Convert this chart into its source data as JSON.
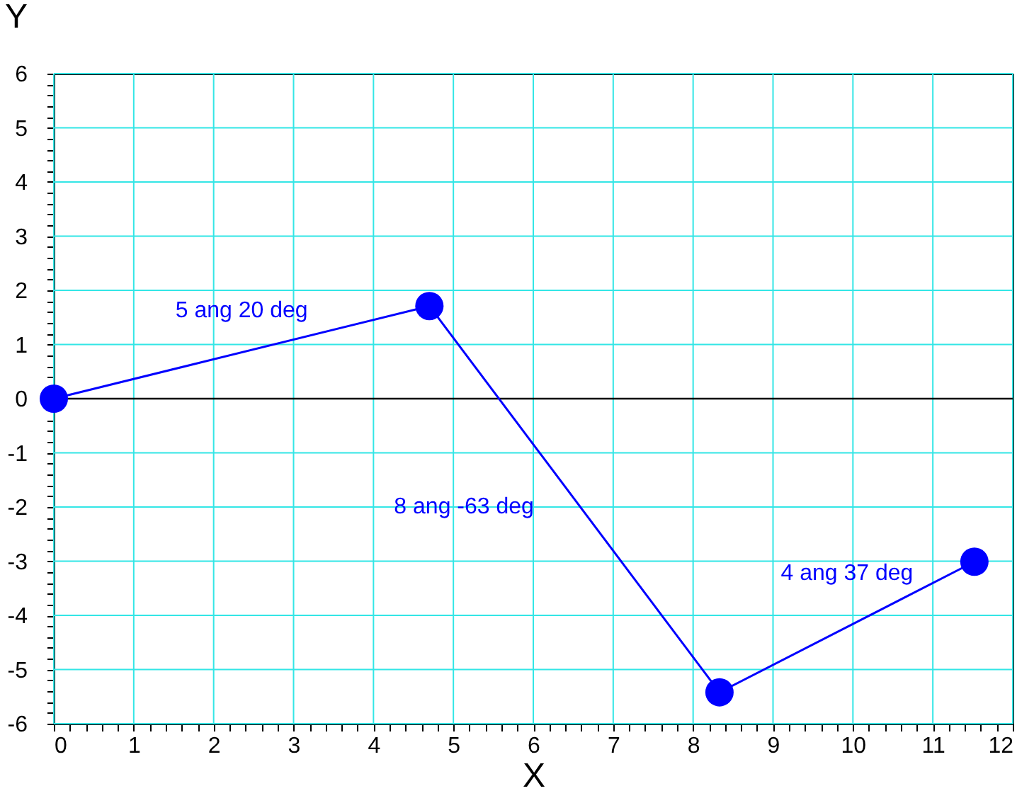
{
  "chart_data": {
    "type": "line",
    "xlabel": "X",
    "ylabel": "Y",
    "x": [
      0,
      4.7,
      8.33,
      11.52
    ],
    "series": [
      {
        "color": "#0000ff",
        "values": [
          0,
          1.71,
          -5.42,
          -3.01
        ]
      }
    ],
    "marker": "circle",
    "line_style": "solid",
    "grid": true,
    "xlim": [
      0,
      12
    ],
    "ylim": [
      -6,
      6
    ],
    "xticks": [
      0,
      1,
      2,
      3,
      4,
      5,
      6,
      7,
      8,
      9,
      10,
      11,
      12,
      {
        "value": 0.2,
        "label": null
      },
      {
        "value": 0.4,
        "label": null
      },
      {
        "value": 0.6,
        "label": null
      },
      {
        "value": 0.8,
        "label": null
      },
      {
        "value": 1.2,
        "label": null
      },
      {
        "value": 1.4,
        "label": null
      },
      {
        "value": 1.6,
        "label": null
      },
      {
        "value": 1.8,
        "label": null
      },
      {
        "value": 2.2,
        "label": null
      },
      {
        "value": 2.4,
        "label": null
      },
      {
        "value": 2.6,
        "label": null
      },
      {
        "value": 2.8,
        "label": null
      },
      {
        "value": 3.2,
        "label": null
      },
      {
        "value": 3.4,
        "label": null
      },
      {
        "value": 3.6,
        "label": null
      },
      {
        "value": 3.8,
        "label": null
      },
      {
        "value": 4.2,
        "label": null
      },
      {
        "value": 4.4,
        "label": null
      },
      {
        "value": 4.6,
        "label": null
      },
      {
        "value": 4.8,
        "label": null
      },
      {
        "value": 5.2,
        "label": null
      },
      {
        "value": 5.4,
        "label": null
      },
      {
        "value": 5.6,
        "label": null
      },
      {
        "value": 5.8,
        "label": null
      },
      {
        "value": 6.2,
        "label": null
      },
      {
        "value": 6.4,
        "label": null
      },
      {
        "value": 6.6,
        "label": null
      },
      {
        "value": 6.8,
        "label": null
      },
      {
        "value": 7.2,
        "label": null
      },
      {
        "value": 7.4,
        "label": null
      },
      {
        "value": 7.6,
        "label": null
      },
      {
        "value": 7.8,
        "label": null
      },
      {
        "value": 8.2,
        "label": null
      },
      {
        "value": 8.4,
        "label": null
      },
      {
        "value": 8.6,
        "label": null
      },
      {
        "value": 8.8,
        "label": null
      },
      {
        "value": 9.2,
        "label": null
      },
      {
        "value": 9.4,
        "label": null
      },
      {
        "value": 9.6,
        "label": null
      },
      {
        "value": 9.8,
        "label": null
      },
      {
        "value": 10.2,
        "label": null
      },
      {
        "value": 10.4,
        "label": null
      },
      {
        "value": 10.6,
        "label": null
      },
      {
        "value": 10.8,
        "label": null
      },
      {
        "value": 11.2,
        "label": null
      },
      {
        "value": 11.4,
        "label": null
      },
      {
        "value": 11.6,
        "label": null
      },
      {
        "value": 11.8,
        "label": null
      }
    ],
    "yticks": [
      -6,
      -5,
      -4,
      -3,
      -2,
      -1,
      0,
      1,
      2,
      3,
      4,
      5,
      6,
      {
        "value": -5.8,
        "label": null
      },
      {
        "value": -5.6,
        "label": null
      },
      {
        "value": -5.4,
        "label": null
      },
      {
        "value": -5.2,
        "label": null
      },
      {
        "value": -4.8,
        "label": null
      },
      {
        "value": -4.6,
        "label": null
      },
      {
        "value": -4.4,
        "label": null
      },
      {
        "value": -4.2,
        "label": null
      },
      {
        "value": -3.8,
        "label": null
      },
      {
        "value": -3.6,
        "label": null
      },
      {
        "value": -3.4,
        "label": null
      },
      {
        "value": -3.2,
        "label": null
      },
      {
        "value": -2.8,
        "label": null
      },
      {
        "value": -2.6,
        "label": null
      },
      {
        "value": -2.4,
        "label": null
      },
      {
        "value": -2.2,
        "label": null
      },
      {
        "value": -1.8,
        "label": null
      },
      {
        "value": -1.6,
        "label": null
      },
      {
        "value": -1.4,
        "label": null
      },
      {
        "value": -1.2,
        "label": null
      },
      {
        "value": -0.8,
        "label": null
      },
      {
        "value": -0.6,
        "label": null
      },
      {
        "value": -0.4,
        "label": null
      },
      {
        "value": -0.2,
        "label": null
      },
      {
        "value": 0.2,
        "label": null
      },
      {
        "value": 0.4,
        "label": null
      },
      {
        "value": 0.6,
        "label": null
      },
      {
        "value": 0.8,
        "label": null
      },
      {
        "value": 1.2,
        "label": null
      },
      {
        "value": 1.4,
        "label": null
      },
      {
        "value": 1.6,
        "label": null
      },
      {
        "value": 1.8,
        "label": null
      },
      {
        "value": 2.2,
        "label": null
      },
      {
        "value": 2.4,
        "label": null
      },
      {
        "value": 2.6,
        "label": null
      },
      {
        "value": 2.8,
        "label": null
      },
      {
        "value": 3.2,
        "label": null
      },
      {
        "value": 3.4,
        "label": null
      },
      {
        "value": 3.6,
        "label": null
      },
      {
        "value": 3.8,
        "label": null
      },
      {
        "value": 4.2,
        "label": null
      },
      {
        "value": 4.4,
        "label": null
      },
      {
        "value": 4.6,
        "label": null
      },
      {
        "value": 4.8,
        "label": null
      },
      {
        "value": 5.2,
        "label": null
      },
      {
        "value": 5.4,
        "label": null
      },
      {
        "value": 5.6,
        "label": null
      },
      {
        "value": 5.8,
        "label": null
      }
    ],
    "ref_lines": [
      {
        "axis": "y",
        "value": 0,
        "color": "#000000"
      }
    ],
    "annotations": [
      "5 ang 20 deg",
      "8 ang -63 deg",
      "4 ang 37 deg"
    ]
  }
}
